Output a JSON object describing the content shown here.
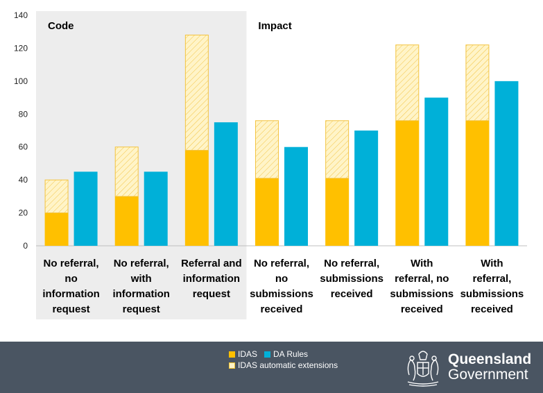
{
  "colors": {
    "idas": "#FFC000",
    "da_rules": "#00B0D8",
    "ext_fill": "#FFF4C8",
    "ext_stroke": "#F3C340",
    "code_panel": "#EDEDED",
    "footer": "#4A5562"
  },
  "chart_data": {
    "type": "bar",
    "ylim": [
      0,
      140
    ],
    "yticks": [
      0,
      20,
      40,
      60,
      80,
      100,
      120,
      140
    ],
    "grid": false,
    "sections": [
      {
        "label": "Code",
        "categories": [
          0,
          1,
          2
        ]
      },
      {
        "label": "Impact",
        "categories": [
          3,
          4,
          5,
          6
        ]
      }
    ],
    "categories": [
      [
        "No referral,",
        "no",
        "information",
        "request"
      ],
      [
        "No referral,",
        "with",
        "information",
        "request"
      ],
      [
        "Referral and",
        "information",
        "request"
      ],
      [
        "No referral,",
        "no",
        "submissions",
        "received"
      ],
      [
        "No referral,",
        "submissions",
        "received"
      ],
      [
        "With",
        "referral, no",
        "submissions",
        "received"
      ],
      [
        "With",
        "referral,",
        "submissions",
        "received"
      ]
    ],
    "series": [
      {
        "name": "IDAS",
        "values": [
          20,
          30,
          58,
          41,
          41,
          76,
          76
        ]
      },
      {
        "name": "IDAS automatic extensions",
        "values": [
          20,
          30,
          70,
          35,
          35,
          46,
          46
        ],
        "stacked_on": "IDAS"
      },
      {
        "name": "DA Rules",
        "values": [
          45,
          45,
          75,
          60,
          70,
          90,
          100
        ]
      }
    ]
  },
  "legend": {
    "idas": "IDAS",
    "da_rules": "DA Rules",
    "extensions": "IDAS automatic extensions"
  },
  "footer": {
    "brand_line1": "Queensland",
    "brand_line2": "Government"
  }
}
